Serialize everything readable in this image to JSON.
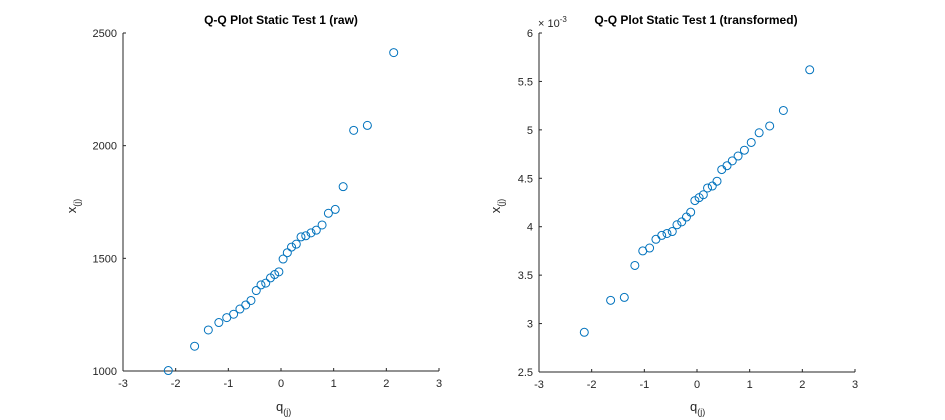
{
  "chart_data": [
    {
      "type": "scatter",
      "title": "Q-Q Plot Static Test 1 (raw)",
      "xlabel": "q",
      "xlabel_sub": "(j)",
      "ylabel": "x",
      "ylabel_sub": "(j)",
      "xlim": [
        -3,
        3
      ],
      "ylim": [
        1000,
        2500
      ],
      "xticks": [
        "-3",
        "-2",
        "-1",
        "0",
        "1",
        "2",
        "3"
      ],
      "yticks": [
        "1000",
        "1500",
        "2000",
        "2500"
      ],
      "exponent_label": "",
      "marker_color": "#0072bd",
      "grid": false,
      "points": [
        {
          "x": -2.14,
          "y": 1002
        },
        {
          "x": -1.64,
          "y": 1110
        },
        {
          "x": -1.38,
          "y": 1182
        },
        {
          "x": -1.18,
          "y": 1215
        },
        {
          "x": -1.03,
          "y": 1237
        },
        {
          "x": -0.9,
          "y": 1252
        },
        {
          "x": -0.78,
          "y": 1275
        },
        {
          "x": -0.67,
          "y": 1293
        },
        {
          "x": -0.57,
          "y": 1313
        },
        {
          "x": -0.47,
          "y": 1357
        },
        {
          "x": -0.38,
          "y": 1382
        },
        {
          "x": -0.29,
          "y": 1390
        },
        {
          "x": -0.2,
          "y": 1413
        },
        {
          "x": -0.12,
          "y": 1428
        },
        {
          "x": -0.04,
          "y": 1440
        },
        {
          "x": 0.04,
          "y": 1497
        },
        {
          "x": 0.12,
          "y": 1525
        },
        {
          "x": 0.2,
          "y": 1550
        },
        {
          "x": 0.29,
          "y": 1563
        },
        {
          "x": 0.38,
          "y": 1595
        },
        {
          "x": 0.47,
          "y": 1600
        },
        {
          "x": 0.57,
          "y": 1613
        },
        {
          "x": 0.67,
          "y": 1625
        },
        {
          "x": 0.78,
          "y": 1648
        },
        {
          "x": 0.9,
          "y": 1700
        },
        {
          "x": 1.03,
          "y": 1717
        },
        {
          "x": 1.18,
          "y": 1818
        },
        {
          "x": 1.38,
          "y": 2068
        },
        {
          "x": 1.64,
          "y": 2090
        },
        {
          "x": 2.14,
          "y": 2413
        }
      ]
    },
    {
      "type": "scatter",
      "title": "Q-Q Plot Static Test 1 (transformed)",
      "xlabel": "q",
      "xlabel_sub": "(j)",
      "ylabel": "x",
      "ylabel_sub": "(j)",
      "xlim": [
        -3,
        3
      ],
      "ylim": [
        2.5,
        6
      ],
      "xticks": [
        "-3",
        "-2",
        "-1",
        "0",
        "1",
        "2",
        "3"
      ],
      "yticks": [
        "2.5",
        "3",
        "3.5",
        "4",
        "4.5",
        "5",
        "5.5",
        "6"
      ],
      "exponent_label": "× 10",
      "exponent_value": "-3",
      "marker_color": "#0072bd",
      "grid": false,
      "points": [
        {
          "x": -2.14,
          "y": 2.91
        },
        {
          "x": -1.64,
          "y": 3.24
        },
        {
          "x": -1.38,
          "y": 3.27
        },
        {
          "x": -1.18,
          "y": 3.6
        },
        {
          "x": -1.03,
          "y": 3.75
        },
        {
          "x": -0.9,
          "y": 3.78
        },
        {
          "x": -0.78,
          "y": 3.87
        },
        {
          "x": -0.67,
          "y": 3.91
        },
        {
          "x": -0.57,
          "y": 3.93
        },
        {
          "x": -0.47,
          "y": 3.95
        },
        {
          "x": -0.38,
          "y": 4.02
        },
        {
          "x": -0.29,
          "y": 4.05
        },
        {
          "x": -0.2,
          "y": 4.1
        },
        {
          "x": -0.12,
          "y": 4.15
        },
        {
          "x": -0.04,
          "y": 4.27
        },
        {
          "x": 0.04,
          "y": 4.3
        },
        {
          "x": 0.12,
          "y": 4.33
        },
        {
          "x": 0.2,
          "y": 4.4
        },
        {
          "x": 0.29,
          "y": 4.42
        },
        {
          "x": 0.38,
          "y": 4.47
        },
        {
          "x": 0.47,
          "y": 4.59
        },
        {
          "x": 0.57,
          "y": 4.63
        },
        {
          "x": 0.67,
          "y": 4.68
        },
        {
          "x": 0.78,
          "y": 4.73
        },
        {
          "x": 0.9,
          "y": 4.79
        },
        {
          "x": 1.03,
          "y": 4.87
        },
        {
          "x": 1.18,
          "y": 4.97
        },
        {
          "x": 1.38,
          "y": 5.04
        },
        {
          "x": 1.64,
          "y": 5.2
        },
        {
          "x": 2.14,
          "y": 5.62
        }
      ]
    }
  ]
}
